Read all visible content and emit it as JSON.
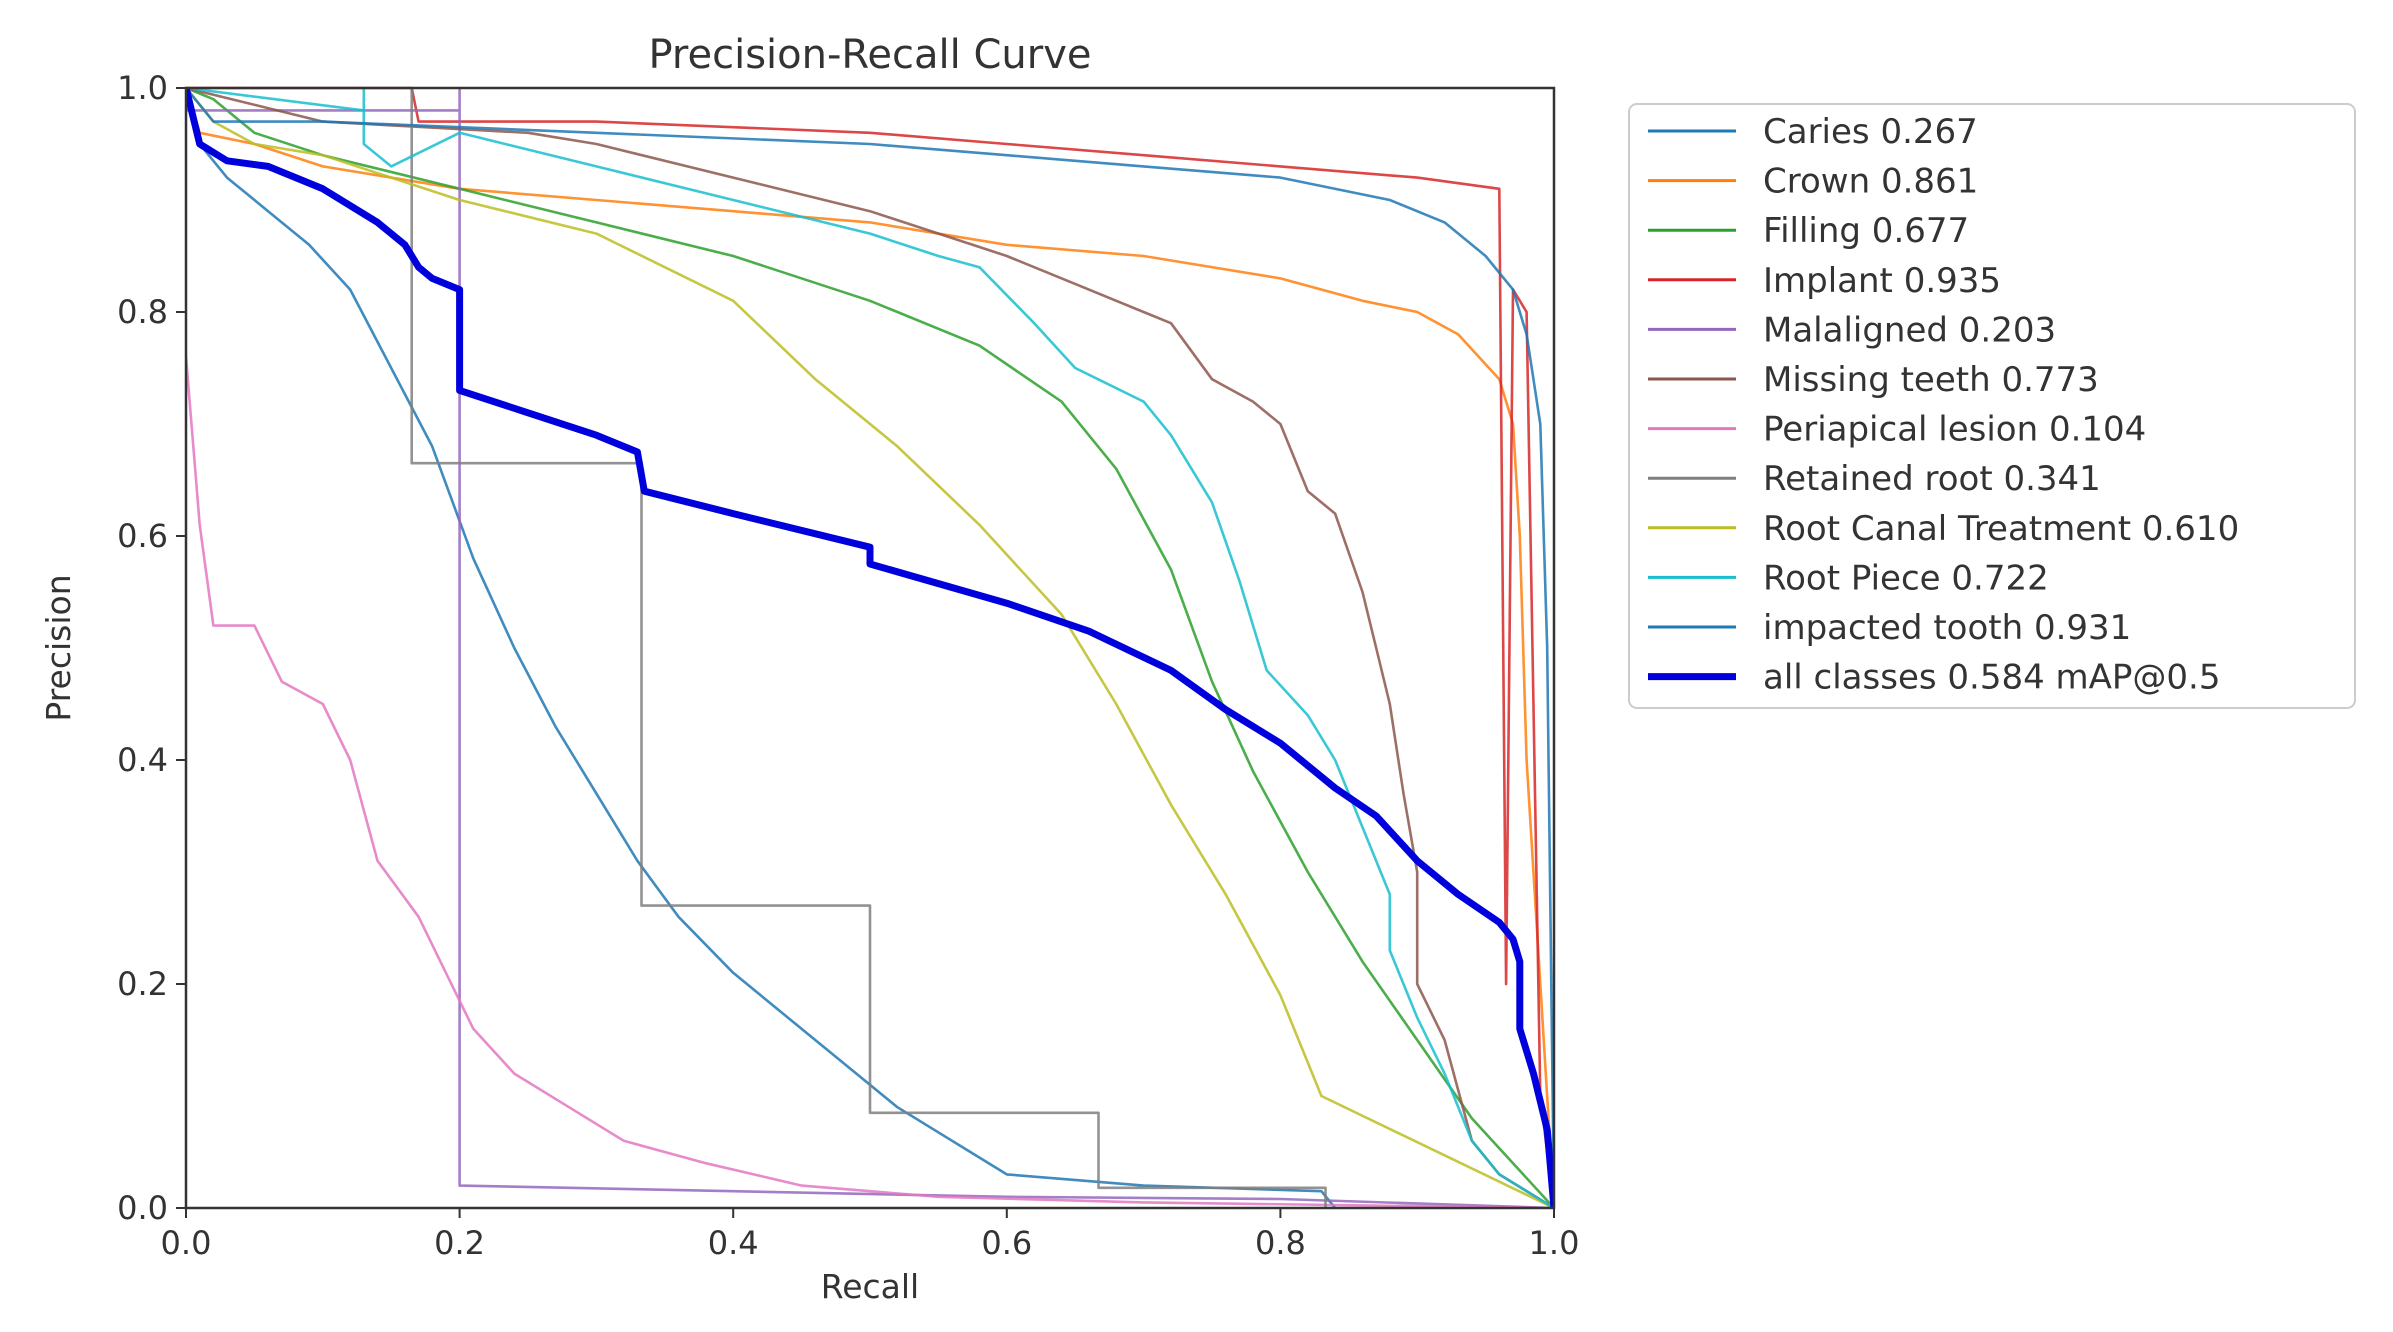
{
  "chart_data": {
    "type": "line",
    "title": "Precision-Recall Curve",
    "xlabel": "Recall",
    "ylabel": "Precision",
    "xlim": [
      0,
      1
    ],
    "ylim": [
      0,
      1
    ],
    "xticks": [
      "0.0",
      "0.2",
      "0.4",
      "0.6",
      "0.8",
      "1.0"
    ],
    "yticks": [
      "0.0",
      "0.2",
      "0.4",
      "0.6",
      "0.8",
      "1.0"
    ],
    "grid": false,
    "legend_position": "outside-right",
    "series": [
      {
        "name": "Caries 0.267",
        "color": "#1f77b4",
        "linewidth": "thin",
        "points": [
          [
            0,
            1.0
          ],
          [
            0.01,
            0.95
          ],
          [
            0.03,
            0.92
          ],
          [
            0.06,
            0.89
          ],
          [
            0.09,
            0.86
          ],
          [
            0.12,
            0.82
          ],
          [
            0.15,
            0.75
          ],
          [
            0.18,
            0.68
          ],
          [
            0.21,
            0.58
          ],
          [
            0.24,
            0.5
          ],
          [
            0.27,
            0.43
          ],
          [
            0.3,
            0.37
          ],
          [
            0.33,
            0.31
          ],
          [
            0.36,
            0.26
          ],
          [
            0.4,
            0.21
          ],
          [
            0.44,
            0.17
          ],
          [
            0.48,
            0.13
          ],
          [
            0.52,
            0.09
          ],
          [
            0.56,
            0.06
          ],
          [
            0.6,
            0.03
          ],
          [
            0.7,
            0.02
          ],
          [
            0.83,
            0.015
          ],
          [
            0.84,
            0.0
          ]
        ]
      },
      {
        "name": "Crown 0.861",
        "color": "#ff7f0e",
        "linewidth": "thin",
        "points": [
          [
            0,
            1.0
          ],
          [
            0.01,
            0.96
          ],
          [
            0.05,
            0.95
          ],
          [
            0.1,
            0.93
          ],
          [
            0.2,
            0.91
          ],
          [
            0.3,
            0.9
          ],
          [
            0.4,
            0.89
          ],
          [
            0.5,
            0.88
          ],
          [
            0.6,
            0.86
          ],
          [
            0.7,
            0.85
          ],
          [
            0.8,
            0.83
          ],
          [
            0.86,
            0.81
          ],
          [
            0.9,
            0.8
          ],
          [
            0.93,
            0.78
          ],
          [
            0.96,
            0.74
          ],
          [
            0.97,
            0.7
          ],
          [
            0.975,
            0.6
          ],
          [
            0.98,
            0.4
          ],
          [
            0.99,
            0.2
          ],
          [
            1.0,
            0.0
          ]
        ]
      },
      {
        "name": "Filling 0.677",
        "color": "#2ca02c",
        "linewidth": "thin",
        "points": [
          [
            0,
            1.0
          ],
          [
            0.02,
            0.99
          ],
          [
            0.05,
            0.96
          ],
          [
            0.1,
            0.94
          ],
          [
            0.2,
            0.91
          ],
          [
            0.3,
            0.88
          ],
          [
            0.4,
            0.85
          ],
          [
            0.5,
            0.81
          ],
          [
            0.58,
            0.77
          ],
          [
            0.64,
            0.72
          ],
          [
            0.68,
            0.66
          ],
          [
            0.72,
            0.57
          ],
          [
            0.75,
            0.47
          ],
          [
            0.78,
            0.39
          ],
          [
            0.82,
            0.3
          ],
          [
            0.86,
            0.22
          ],
          [
            0.9,
            0.15
          ],
          [
            0.94,
            0.08
          ],
          [
            1.0,
            0.0
          ]
        ]
      },
      {
        "name": "Implant 0.935",
        "color": "#d62728",
        "linewidth": "thin",
        "points": [
          [
            0,
            1.0
          ],
          [
            0.165,
            1.0
          ],
          [
            0.17,
            0.97
          ],
          [
            0.3,
            0.97
          ],
          [
            0.5,
            0.96
          ],
          [
            0.6,
            0.95
          ],
          [
            0.7,
            0.94
          ],
          [
            0.8,
            0.93
          ],
          [
            0.9,
            0.92
          ],
          [
            0.96,
            0.91
          ],
          [
            0.965,
            0.2
          ],
          [
            0.97,
            0.82
          ],
          [
            0.98,
            0.8
          ],
          [
            0.99,
            0.1
          ],
          [
            1.0,
            0.0
          ]
        ]
      },
      {
        "name": "Malaligned 0.203",
        "color": "#9467bd",
        "linewidth": "thin",
        "points": [
          [
            0,
            0.98
          ],
          [
            0.2,
            0.98
          ],
          [
            0.2,
            1.0
          ],
          [
            0.2,
            0.02
          ],
          [
            0.4,
            0.015
          ],
          [
            0.6,
            0.01
          ],
          [
            0.8,
            0.008
          ],
          [
            1.0,
            0.0
          ]
        ]
      },
      {
        "name": "Missing teeth 0.773",
        "color": "#8c564b",
        "linewidth": "thin",
        "points": [
          [
            0,
            1.0
          ],
          [
            0.1,
            0.97
          ],
          [
            0.25,
            0.96
          ],
          [
            0.3,
            0.95
          ],
          [
            0.4,
            0.92
          ],
          [
            0.5,
            0.89
          ],
          [
            0.6,
            0.85
          ],
          [
            0.66,
            0.82
          ],
          [
            0.7,
            0.8
          ],
          [
            0.72,
            0.79
          ],
          [
            0.75,
            0.74
          ],
          [
            0.78,
            0.72
          ],
          [
            0.8,
            0.7
          ],
          [
            0.82,
            0.64
          ],
          [
            0.84,
            0.62
          ],
          [
            0.86,
            0.55
          ],
          [
            0.87,
            0.5
          ],
          [
            0.88,
            0.45
          ],
          [
            0.89,
            0.37
          ],
          [
            0.9,
            0.3
          ],
          [
            0.9,
            0.2
          ],
          [
            0.92,
            0.15
          ],
          [
            0.94,
            0.06
          ],
          [
            0.96,
            0.03
          ],
          [
            1.0,
            0.0
          ]
        ]
      },
      {
        "name": "Periapical lesion 0.104",
        "color": "#e377c2",
        "linewidth": "thin",
        "points": [
          [
            0,
            0.76
          ],
          [
            0.01,
            0.61
          ],
          [
            0.02,
            0.52
          ],
          [
            0.05,
            0.52
          ],
          [
            0.07,
            0.47
          ],
          [
            0.1,
            0.45
          ],
          [
            0.12,
            0.4
          ],
          [
            0.14,
            0.31
          ],
          [
            0.17,
            0.26
          ],
          [
            0.19,
            0.21
          ],
          [
            0.21,
            0.16
          ],
          [
            0.24,
            0.12
          ],
          [
            0.28,
            0.09
          ],
          [
            0.32,
            0.06
          ],
          [
            0.38,
            0.04
          ],
          [
            0.45,
            0.02
          ],
          [
            0.55,
            0.01
          ],
          [
            0.7,
            0.005
          ],
          [
            1.0,
            0.0
          ]
        ]
      },
      {
        "name": "Retained root 0.341",
        "color": "#7f7f7f",
        "linewidth": "thin",
        "points": [
          [
            0.165,
            1.0
          ],
          [
            0.165,
            0.665
          ],
          [
            0.333,
            0.665
          ],
          [
            0.333,
            0.27
          ],
          [
            0.5,
            0.27
          ],
          [
            0.5,
            0.085
          ],
          [
            0.667,
            0.085
          ],
          [
            0.667,
            0.018
          ],
          [
            0.833,
            0.018
          ],
          [
            0.833,
            0.0
          ]
        ]
      },
      {
        "name": "Root Canal Treatment 0.610",
        "color": "#bcbd22",
        "linewidth": "thin",
        "points": [
          [
            0,
            1.0
          ],
          [
            0.02,
            0.97
          ],
          [
            0.05,
            0.95
          ],
          [
            0.1,
            0.94
          ],
          [
            0.2,
            0.9
          ],
          [
            0.3,
            0.87
          ],
          [
            0.4,
            0.81
          ],
          [
            0.46,
            0.74
          ],
          [
            0.52,
            0.68
          ],
          [
            0.58,
            0.61
          ],
          [
            0.64,
            0.53
          ],
          [
            0.68,
            0.45
          ],
          [
            0.72,
            0.36
          ],
          [
            0.76,
            0.28
          ],
          [
            0.8,
            0.19
          ],
          [
            0.83,
            0.1
          ],
          [
            1.0,
            0.0
          ]
        ]
      },
      {
        "name": "Root Piece 0.722",
        "color": "#17becf",
        "linewidth": "thin",
        "points": [
          [
            0,
            1.0
          ],
          [
            0.13,
            0.98
          ],
          [
            0.13,
            1.0
          ],
          [
            0.13,
            0.95
          ],
          [
            0.15,
            0.93
          ],
          [
            0.2,
            0.96
          ],
          [
            0.3,
            0.93
          ],
          [
            0.4,
            0.9
          ],
          [
            0.5,
            0.87
          ],
          [
            0.55,
            0.85
          ],
          [
            0.58,
            0.84
          ],
          [
            0.62,
            0.79
          ],
          [
            0.65,
            0.75
          ],
          [
            0.7,
            0.72
          ],
          [
            0.72,
            0.69
          ],
          [
            0.75,
            0.63
          ],
          [
            0.77,
            0.56
          ],
          [
            0.79,
            0.48
          ],
          [
            0.82,
            0.44
          ],
          [
            0.84,
            0.4
          ],
          [
            0.86,
            0.34
          ],
          [
            0.88,
            0.28
          ],
          [
            0.88,
            0.23
          ],
          [
            0.9,
            0.17
          ],
          [
            0.92,
            0.12
          ],
          [
            0.94,
            0.06
          ],
          [
            0.96,
            0.03
          ],
          [
            1.0,
            0.0
          ]
        ]
      },
      {
        "name": "impacted tooth 0.931",
        "color": "#1f77b4",
        "linewidth": "thin",
        "points": [
          [
            0,
            1.0
          ],
          [
            0.02,
            0.97
          ],
          [
            0.1,
            0.97
          ],
          [
            0.3,
            0.96
          ],
          [
            0.5,
            0.95
          ],
          [
            0.6,
            0.94
          ],
          [
            0.7,
            0.93
          ],
          [
            0.8,
            0.92
          ],
          [
            0.88,
            0.9
          ],
          [
            0.92,
            0.88
          ],
          [
            0.95,
            0.85
          ],
          [
            0.97,
            0.82
          ],
          [
            0.98,
            0.78
          ],
          [
            0.99,
            0.7
          ],
          [
            0.995,
            0.5
          ],
          [
            1.0,
            0.0
          ]
        ]
      },
      {
        "name": "all classes 0.584 mAP@0.5",
        "color": "#0000dd",
        "linewidth": "thick",
        "points": [
          [
            0,
            1.0
          ],
          [
            0.01,
            0.95
          ],
          [
            0.03,
            0.935
          ],
          [
            0.06,
            0.93
          ],
          [
            0.1,
            0.91
          ],
          [
            0.14,
            0.88
          ],
          [
            0.16,
            0.86
          ],
          [
            0.17,
            0.84
          ],
          [
            0.18,
            0.83
          ],
          [
            0.2,
            0.82
          ],
          [
            0.2,
            0.73
          ],
          [
            0.25,
            0.71
          ],
          [
            0.3,
            0.69
          ],
          [
            0.33,
            0.675
          ],
          [
            0.335,
            0.64
          ],
          [
            0.4,
            0.62
          ],
          [
            0.5,
            0.59
          ],
          [
            0.5,
            0.575
          ],
          [
            0.6,
            0.54
          ],
          [
            0.66,
            0.515
          ],
          [
            0.72,
            0.48
          ],
          [
            0.76,
            0.445
          ],
          [
            0.8,
            0.415
          ],
          [
            0.84,
            0.375
          ],
          [
            0.87,
            0.35
          ],
          [
            0.9,
            0.31
          ],
          [
            0.93,
            0.28
          ],
          [
            0.96,
            0.255
          ],
          [
            0.97,
            0.24
          ],
          [
            0.975,
            0.22
          ],
          [
            0.975,
            0.16
          ],
          [
            0.985,
            0.12
          ],
          [
            0.995,
            0.07
          ],
          [
            1.0,
            0.0
          ]
        ]
      }
    ]
  }
}
